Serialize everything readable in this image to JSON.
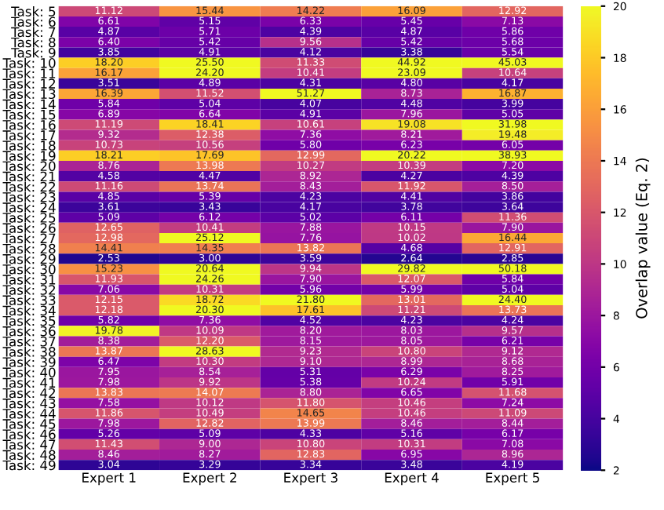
{
  "chart_data": {
    "type": "heatmap",
    "categories": [
      "Expert 1",
      "Expert 2",
      "Expert 3",
      "Expert 4",
      "Expert 5"
    ],
    "y_categories": [
      "Task: 5",
      "Task: 6",
      "Task: 7",
      "Task: 8",
      "Task: 9",
      "Task: 10",
      "Task: 11",
      "Task: 12",
      "Task: 13",
      "Task: 14",
      "Task: 15",
      "Task: 16",
      "Task: 17",
      "Task: 18",
      "Task: 19",
      "Task: 20",
      "Task: 21",
      "Task: 22",
      "Task: 23",
      "Task: 24",
      "Task: 25",
      "Task: 26",
      "Task: 27",
      "Task: 28",
      "Task: 29",
      "Task: 30",
      "Task: 31",
      "Task: 32",
      "Task: 33",
      "Task: 34",
      "Task: 35",
      "Task: 36",
      "Task: 37",
      "Task: 38",
      "Task: 39",
      "Task: 40",
      "Task: 41",
      "Task: 42",
      "Task: 43",
      "Task: 44",
      "Task: 45",
      "Task: 46",
      "Task: 47",
      "Task: 48",
      "Task: 49"
    ],
    "cells": [
      [
        11.12,
        15.44,
        14.22,
        16.09,
        12.92
      ],
      [
        6.61,
        5.15,
        6.33,
        5.45,
        7.13
      ],
      [
        4.87,
        5.71,
        4.39,
        4.87,
        5.86
      ],
      [
        6.4,
        5.42,
        9.56,
        5.42,
        5.68
      ],
      [
        3.85,
        4.91,
        4.12,
        3.38,
        5.54
      ],
      [
        18.2,
        25.5,
        11.33,
        44.92,
        45.03
      ],
      [
        16.17,
        24.2,
        10.41,
        23.09,
        10.64
      ],
      [
        3.51,
        4.89,
        4.31,
        4.8,
        4.17
      ],
      [
        16.39,
        11.52,
        51.27,
        8.73,
        16.87
      ],
      [
        5.84,
        5.04,
        4.07,
        4.48,
        3.99
      ],
      [
        6.89,
        6.64,
        4.91,
        7.96,
        5.05
      ],
      [
        11.19,
        18.41,
        10.61,
        19.08,
        31.98
      ],
      [
        9.32,
        12.38,
        7.36,
        8.21,
        19.48
      ],
      [
        10.73,
        10.56,
        5.8,
        6.23,
        6.05
      ],
      [
        18.21,
        17.69,
        12.99,
        20.22,
        38.93
      ],
      [
        8.76,
        13.98,
        10.27,
        10.39,
        7.2
      ],
      [
        4.58,
        4.47,
        8.92,
        4.27,
        4.39
      ],
      [
        11.16,
        13.74,
        8.43,
        11.92,
        8.5
      ],
      [
        4.85,
        5.39,
        4.23,
        4.41,
        3.86
      ],
      [
        3.61,
        3.43,
        4.17,
        3.78,
        3.64
      ],
      [
        5.09,
        6.12,
        5.02,
        6.11,
        11.36
      ],
      [
        12.65,
        10.41,
        7.88,
        10.15,
        7.9
      ],
      [
        12.98,
        25.12,
        7.76,
        10.02,
        16.44
      ],
      [
        14.41,
        14.35,
        13.82,
        4.68,
        12.91
      ],
      [
        2.53,
        3.0,
        3.59,
        2.64,
        2.85
      ],
      [
        15.23,
        20.64,
        9.94,
        29.82,
        50.18
      ],
      [
        11.93,
        24.26,
        7.9,
        12.07,
        5.84
      ],
      [
        7.06,
        10.31,
        5.96,
        5.99,
        5.04
      ],
      [
        12.15,
        18.72,
        21.8,
        13.01,
        24.4
      ],
      [
        12.18,
        20.3,
        17.61,
        11.21,
        13.73
      ],
      [
        5.82,
        7.36,
        4.52,
        4.23,
        4.24
      ],
      [
        19.78,
        10.09,
        8.2,
        8.03,
        9.57
      ],
      [
        8.38,
        12.2,
        8.15,
        8.05,
        6.21
      ],
      [
        13.87,
        28.63,
        9.23,
        10.8,
        9.12
      ],
      [
        6.47,
        10.3,
        9.1,
        8.99,
        8.68
      ],
      [
        7.95,
        8.54,
        5.31,
        6.29,
        8.25
      ],
      [
        7.98,
        9.92,
        5.38,
        10.24,
        5.91
      ],
      [
        13.83,
        14.07,
        8.8,
        6.65,
        11.68
      ],
      [
        7.58,
        10.12,
        11.8,
        10.46,
        7.24
      ],
      [
        11.86,
        10.49,
        14.65,
        10.46,
        11.09
      ],
      [
        7.98,
        12.82,
        13.99,
        8.46,
        8.44
      ],
      [
        5.26,
        5.09,
        4.33,
        5.16,
        6.17
      ],
      [
        11.43,
        9.0,
        10.8,
        10.31,
        7.08
      ],
      [
        8.46,
        8.27,
        12.83,
        6.95,
        8.96
      ],
      [
        3.04,
        3.29,
        3.34,
        3.48,
        4.19
      ]
    ],
    "cell_labels": [
      [
        "11.12",
        "15.44",
        "14.22",
        "16.09",
        "12.92"
      ],
      [
        "6.61",
        "5.15",
        "6.33",
        "5.45",
        "7.13"
      ],
      [
        "4.87",
        "5.71",
        "4.39",
        "4.87",
        "5.86"
      ],
      [
        "6.40",
        "5.42",
        "9.56",
        "5.42",
        "5.68"
      ],
      [
        "3.85",
        "4.91",
        "4.12",
        "3.38",
        "5.54"
      ],
      [
        "18.20",
        "25.50",
        "11.33",
        "44.92",
        "45.03"
      ],
      [
        "16.17",
        "24.20",
        "10.41",
        "23.09",
        "10.64"
      ],
      [
        "3.51",
        "4.89",
        "4.31",
        "4.80",
        "4.17"
      ],
      [
        "16.39",
        "11.52",
        "51.27",
        "8.73",
        "16.87"
      ],
      [
        "5.84",
        "5.04",
        "4.07",
        "4.48",
        "3.99"
      ],
      [
        "6.89",
        "6.64",
        "4.91",
        "7.96",
        "5.05"
      ],
      [
        "11.19",
        "18.41",
        "10.61",
        "19.08",
        "31.98"
      ],
      [
        "9.32",
        "12.38",
        "7.36",
        "8.21",
        "19.48"
      ],
      [
        "10.73",
        "10.56",
        "5.80",
        "6.23",
        "6.05"
      ],
      [
        "18.21",
        "17.69",
        "12.99",
        "20.22",
        "38.93"
      ],
      [
        "8.76",
        "13.98",
        "10.27",
        "10.39",
        "7.20"
      ],
      [
        "4.58",
        "4.47",
        "8.92",
        "4.27",
        "4.39"
      ],
      [
        "11.16",
        "13.74",
        "8.43",
        "11.92",
        "8.50"
      ],
      [
        "4.85",
        "5.39",
        "4.23",
        "4.41",
        "3.86"
      ],
      [
        "3.61",
        "3.43",
        "4.17",
        "3.78",
        "3.64"
      ],
      [
        "5.09",
        "6.12",
        "5.02",
        "6.11",
        "11.36"
      ],
      [
        "12.65",
        "10.41",
        "7.88",
        "10.15",
        "7.90"
      ],
      [
        "12.98",
        "25.12",
        "7.76",
        "10.02",
        "16.44"
      ],
      [
        "14.41",
        "14.35",
        "13.82",
        "4.68",
        "12.91"
      ],
      [
        "2.53",
        "3.00",
        "3.59",
        "2.64",
        "2.85"
      ],
      [
        "15.23",
        "20.64",
        "9.94",
        "29.82",
        "50.18"
      ],
      [
        "11.93",
        "24.26",
        "7.90",
        "12.07",
        "5.84"
      ],
      [
        "7.06",
        "10.31",
        "5.96",
        "5.99",
        "5.04"
      ],
      [
        "12.15",
        "18.72",
        "21.80",
        "13.01",
        "24.40"
      ],
      [
        "12.18",
        "20.30",
        "17.61",
        "11.21",
        "13.73"
      ],
      [
        "5.82",
        "7.36",
        "4.52",
        "4.23",
        "4.24"
      ],
      [
        "19.78",
        "10.09",
        "8.20",
        "8.03",
        "9.57"
      ],
      [
        "8.38",
        "12.20",
        "8.15",
        "8.05",
        "6.21"
      ],
      [
        "13.87",
        "28.63",
        "9.23",
        "10.80",
        "9.12"
      ],
      [
        "6.47",
        "10.30",
        "9.10",
        "8.99",
        "8.68"
      ],
      [
        "7.95",
        "8.54",
        "5.31",
        "6.29",
        "8.25"
      ],
      [
        "7.98",
        "9.92",
        "5.38",
        "10.24",
        "5.91"
      ],
      [
        "13.83",
        "14.07",
        "8.80",
        "6.65",
        "11.68"
      ],
      [
        "7.58",
        "10.12",
        "11.80",
        "10.46",
        "7.24"
      ],
      [
        "11.86",
        "10.49",
        "14.65",
        "10.46",
        "11.09"
      ],
      [
        "7.98",
        "12.82",
        "13.99",
        "8.46",
        "8.44"
      ],
      [
        "5.26",
        "5.09",
        "4.33",
        "5.16",
        "6.17"
      ],
      [
        "11.43",
        "9.00",
        "10.80",
        "10.31",
        "7.08"
      ],
      [
        "8.46",
        "8.27",
        "12.83",
        "6.95",
        "8.96"
      ],
      [
        "3.04",
        "3.29",
        "3.34",
        "3.48",
        "4.19"
      ]
    ],
    "clim": [
      2,
      20
    ],
    "cticks": [
      2,
      4,
      6,
      8,
      10,
      12,
      14,
      16,
      18,
      20
    ],
    "clabel": "Overlap value (Eq. 2)"
  }
}
